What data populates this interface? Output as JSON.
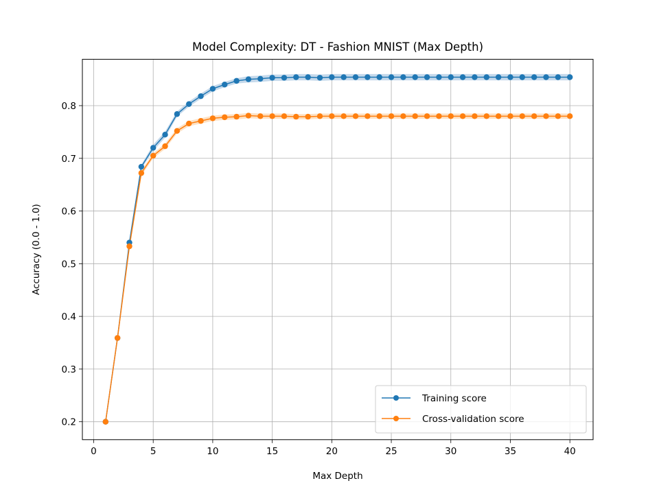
{
  "chart_data": {
    "type": "line",
    "title": "Model Complexity: DT - Fashion MNIST (Max Depth)",
    "xlabel": "Max Depth",
    "ylabel": "Accuracy (0.0 - 1.0)",
    "xlim": [
      -0.95,
      41.95
    ],
    "ylim": [
      0.166,
      0.888
    ],
    "xticks": [
      0,
      5,
      10,
      15,
      20,
      25,
      30,
      35,
      40
    ],
    "yticks": [
      0.2,
      0.3,
      0.4,
      0.5,
      0.6,
      0.7,
      0.8
    ],
    "ytick_labels": [
      "0.2",
      "0.3",
      "0.4",
      "0.5",
      "0.6",
      "0.7",
      "0.8"
    ],
    "grid": true,
    "legend_position": "lower right",
    "x": [
      1,
      2,
      3,
      4,
      5,
      6,
      7,
      8,
      9,
      10,
      11,
      12,
      13,
      14,
      15,
      16,
      17,
      18,
      19,
      20,
      21,
      22,
      23,
      24,
      25,
      26,
      27,
      28,
      29,
      30,
      31,
      32,
      33,
      34,
      35,
      36,
      37,
      38,
      39,
      40
    ],
    "series": [
      {
        "name": "Training score",
        "color": "#1f77b4",
        "band_color": "#b7cfe6",
        "values": [
          0.2,
          0.359,
          0.54,
          0.684,
          0.72,
          0.745,
          0.784,
          0.803,
          0.818,
          0.832,
          0.84,
          0.847,
          0.85,
          0.851,
          0.853,
          0.853,
          0.854,
          0.854,
          0.853,
          0.854,
          0.854,
          0.854,
          0.854,
          0.854,
          0.854,
          0.854,
          0.854,
          0.854,
          0.854,
          0.854,
          0.854,
          0.854,
          0.854,
          0.854,
          0.854,
          0.854,
          0.854,
          0.854,
          0.854,
          0.854
        ],
        "band": [
          0.001,
          0.002,
          0.003,
          0.004,
          0.006,
          0.006,
          0.005,
          0.005,
          0.005,
          0.005,
          0.005,
          0.005,
          0.006,
          0.006,
          0.006,
          0.006,
          0.006,
          0.006,
          0.006,
          0.006,
          0.006,
          0.006,
          0.006,
          0.006,
          0.006,
          0.006,
          0.006,
          0.006,
          0.006,
          0.006,
          0.006,
          0.006,
          0.006,
          0.006,
          0.006,
          0.006,
          0.006,
          0.006,
          0.006,
          0.006
        ]
      },
      {
        "name": "Cross-validation score",
        "color": "#ff7f0e",
        "band_color": "#fdd9b5",
        "values": [
          0.2,
          0.359,
          0.533,
          0.672,
          0.705,
          0.723,
          0.752,
          0.766,
          0.771,
          0.776,
          0.778,
          0.779,
          0.781,
          0.78,
          0.78,
          0.78,
          0.779,
          0.779,
          0.78,
          0.78,
          0.78,
          0.78,
          0.78,
          0.78,
          0.78,
          0.78,
          0.78,
          0.78,
          0.78,
          0.78,
          0.78,
          0.78,
          0.78,
          0.78,
          0.78,
          0.78,
          0.78,
          0.78,
          0.78,
          0.78
        ],
        "band": [
          0.001,
          0.002,
          0.003,
          0.005,
          0.005,
          0.005,
          0.005,
          0.005,
          0.005,
          0.005,
          0.005,
          0.005,
          0.005,
          0.005,
          0.005,
          0.005,
          0.005,
          0.005,
          0.005,
          0.005,
          0.005,
          0.005,
          0.005,
          0.005,
          0.005,
          0.005,
          0.005,
          0.005,
          0.005,
          0.005,
          0.005,
          0.005,
          0.005,
          0.005,
          0.005,
          0.005,
          0.005,
          0.005,
          0.005,
          0.005
        ]
      }
    ]
  }
}
